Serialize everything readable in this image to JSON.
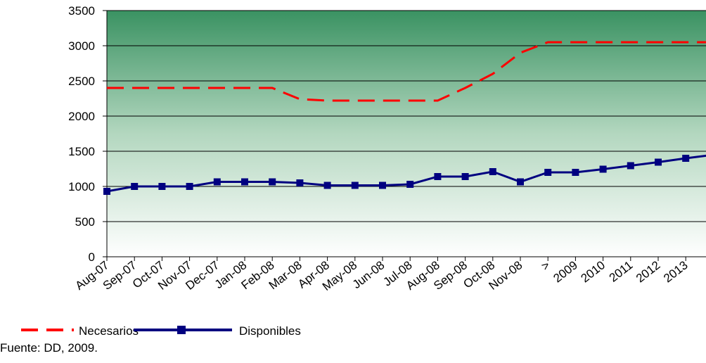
{
  "chart_data": {
    "type": "line",
    "categories": [
      "Aug-07",
      "Sep-07",
      "Oct-07",
      "Nov-07",
      "Dec-07",
      "Jan-08",
      "Feb-08",
      "Mar-08",
      "Apr-08",
      "May-08",
      "Jun-08",
      "Jul-08",
      "Aug-08",
      "Sep-08",
      "Oct-08",
      "Nov-08",
      ">",
      "2009",
      "2010",
      "2011",
      "2012",
      "2013",
      null
    ],
    "series": [
      {
        "name": "Necesarios",
        "color": "#ff0000",
        "dashed": true,
        "markers": false,
        "values": [
          2400,
          2400,
          2400,
          2400,
          2400,
          2400,
          2400,
          2240,
          2220,
          2220,
          2220,
          2220,
          2220,
          2400,
          2600,
          2900,
          3050,
          3050,
          3050,
          3050,
          3050,
          3050,
          3050
        ]
      },
      {
        "name": "Disponibles",
        "color": "#000080",
        "dashed": false,
        "markers": true,
        "values": [
          930,
          1000,
          1000,
          1000,
          1065,
          1065,
          1065,
          1050,
          1015,
          1015,
          1015,
          1030,
          1140,
          1140,
          1210,
          1065,
          1200,
          1200,
          1245,
          1295,
          1345,
          1400,
          1450
        ]
      }
    ],
    "ylim": [
      0,
      3500
    ],
    "yticks": [
      0,
      500,
      1000,
      1500,
      2000,
      2500,
      3000,
      3500
    ],
    "grid": true,
    "note": "Fuente: DD, 2009."
  }
}
